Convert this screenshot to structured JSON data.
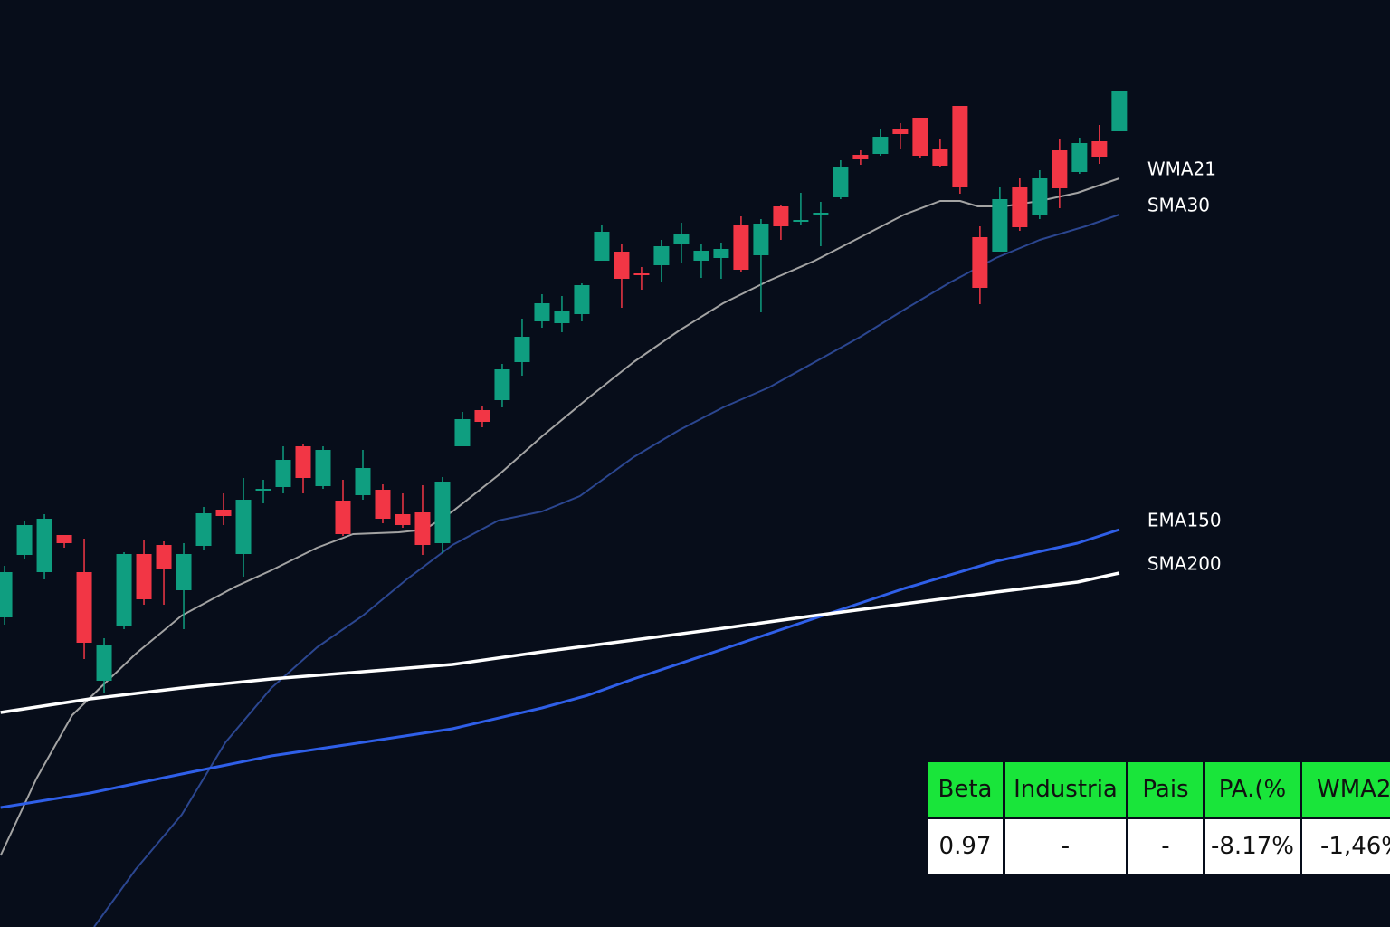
{
  "chart_data": {
    "type": "candlestick",
    "xlim": [
      -0.23,
      69.6
    ],
    "ylim": [
      0,
      1024
    ],
    "up_color": "#0f9e80",
    "down_color": "#f23645",
    "x": [
      0,
      1,
      2,
      3,
      4,
      5,
      6,
      7,
      8,
      9,
      10,
      11,
      12,
      13,
      14,
      15,
      16,
      17,
      18,
      19,
      20,
      21,
      22,
      23,
      24,
      25,
      26,
      27,
      28,
      29,
      30,
      31,
      32,
      33,
      34,
      35,
      36,
      37,
      38,
      39,
      40,
      41,
      42,
      43,
      44,
      45,
      46,
      47,
      48,
      49,
      50,
      51,
      52,
      53,
      54,
      55,
      56
    ],
    "open": [
      342,
      411,
      392,
      433,
      392,
      272,
      332,
      412,
      422,
      372,
      421,
      461,
      412,
      482,
      486,
      531,
      487,
      471,
      477,
      483,
      456,
      458,
      424,
      531,
      571,
      582,
      624,
      669,
      667,
      677,
      736,
      746,
      722,
      731,
      754,
      736,
      739,
      775,
      742,
      796,
      779,
      786,
      806,
      853,
      854,
      882,
      894,
      859,
      907,
      762,
      746,
      817,
      786,
      858,
      834,
      868,
      879
    ],
    "high": [
      399,
      449,
      456,
      433,
      429,
      319,
      414,
      427,
      426,
      424,
      464,
      479,
      496,
      494,
      531,
      534,
      531,
      494,
      527,
      489,
      479,
      488,
      497,
      569,
      576,
      622,
      672,
      699,
      697,
      711,
      776,
      754,
      729,
      759,
      778,
      754,
      756,
      785,
      782,
      798,
      811,
      801,
      847,
      858,
      881,
      888,
      894,
      871,
      907,
      774,
      817,
      827,
      836,
      870,
      872,
      886,
      924
    ],
    "low": [
      334,
      406,
      384,
      419,
      296,
      259,
      329,
      356,
      356,
      329,
      417,
      444,
      387,
      468,
      479,
      479,
      484,
      432,
      472,
      446,
      441,
      411,
      413,
      531,
      552,
      574,
      609,
      662,
      657,
      669,
      736,
      684,
      704,
      712,
      734,
      717,
      716,
      724,
      679,
      759,
      776,
      752,
      804,
      842,
      852,
      859,
      849,
      839,
      810,
      688,
      746,
      769,
      782,
      794,
      832,
      843,
      879
    ],
    "close": [
      392,
      444,
      451,
      424,
      314,
      311,
      412,
      362,
      396,
      412,
      457,
      454,
      472,
      484,
      516,
      496,
      527,
      434,
      507,
      451,
      444,
      422,
      492,
      561,
      558,
      616,
      652,
      689,
      680,
      709,
      768,
      716,
      720,
      752,
      766,
      747,
      749,
      726,
      777,
      774,
      781,
      789,
      840,
      848,
      873,
      876,
      852,
      841,
      817,
      706,
      804,
      773,
      827,
      816,
      866,
      851,
      924
    ],
    "series": [
      {
        "name": "WMA21",
        "color": "#a3a3a3",
        "x": [
          -0.2,
          1.6,
          3.4,
          4.7,
          6.6,
          8.9,
          11.6,
          13.4,
          15.7,
          17.5,
          19.8,
          21.1,
          22.5,
          24.8,
          27.0,
          29.3,
          31.6,
          33.9,
          36.1,
          38.4,
          40.7,
          43.0,
          45.2,
          47.0,
          48.0,
          48.9,
          50.2,
          52.0,
          53.9,
          56
        ],
        "values": [
          79,
          164,
          234,
          262,
          302,
          344,
          376,
          394,
          419,
          434,
          436,
          439,
          459,
          499,
          542,
          584,
          624,
          659,
          689,
          714,
          736,
          762,
          787,
          802,
          802,
          796,
          796,
          802,
          811,
          827
        ]
      },
      {
        "name": "SMA30",
        "color": "#2b4690",
        "x": [
          4.5,
          6.6,
          8.9,
          11.1,
          13.4,
          15.7,
          18.0,
          20.2,
          22.5,
          24.8,
          27.0,
          28.9,
          31.6,
          33.9,
          36.1,
          38.4,
          40.7,
          43.0,
          45.2,
          47.5,
          49.8,
          52.0,
          54.3,
          56
        ],
        "values": [
          0,
          64,
          124,
          204,
          264,
          309,
          344,
          384,
          422,
          449,
          459,
          476,
          519,
          549,
          574,
          596,
          624,
          652,
          682,
          712,
          739,
          759,
          774,
          787
        ]
      },
      {
        "name": "EMA150",
        "color": "#2f5fe8",
        "x": [
          -0.2,
          4.3,
          8.9,
          13.4,
          18.0,
          22.5,
          27.0,
          29.3,
          31.6,
          36.1,
          40.7,
          45.2,
          49.8,
          53.9,
          56
        ],
        "values": [
          132,
          148,
          169,
          189,
          204,
          219,
          242,
          256,
          274,
          307,
          341,
          374,
          404,
          424,
          439
        ]
      },
      {
        "name": "SMA200",
        "color": "#ffffff",
        "x": [
          -0.2,
          4.3,
          8.9,
          13.4,
          18.0,
          22.5,
          27.0,
          31.6,
          36.1,
          40.7,
          45.2,
          49.8,
          53.9,
          56
        ],
        "values": [
          237,
          252,
          264,
          274,
          282,
          290,
          304,
          317,
          330,
          344,
          357,
          370,
          381,
          391
        ]
      }
    ]
  },
  "table": {
    "header": [
      "Beta",
      "Industria",
      "Pais",
      "PA.(%",
      "WMA2"
    ],
    "row": [
      "0.97",
      "-",
      "-",
      "-8.17%",
      "-1,46%"
    ]
  }
}
